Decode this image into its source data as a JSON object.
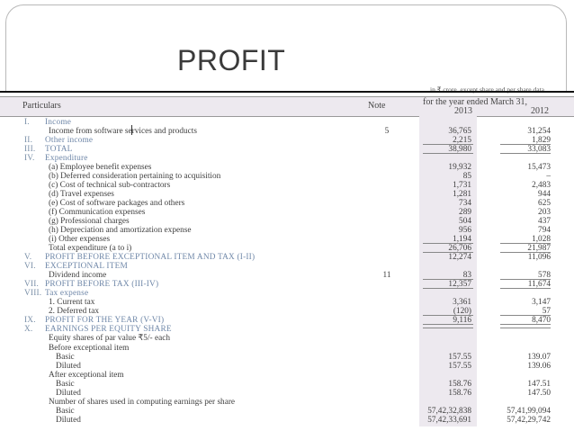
{
  "slide": {
    "title": "PROFIT"
  },
  "table": {
    "units_note": "in ₹ crore, except share and per share data",
    "headers": {
      "particulars": "Particulars",
      "note": "Note",
      "period": "for the year ended March 31,",
      "y2013": "2013",
      "y2012": "2012"
    },
    "rows": [
      {
        "roman": "I.",
        "label": "Income",
        "style": "blue",
        "note": "",
        "v13": "",
        "v12": ""
      },
      {
        "roman": "",
        "label": "Income from software services and products",
        "style": "",
        "note": "5",
        "v13": "36,765",
        "v12": "31,254"
      },
      {
        "roman": "II.",
        "label": "Other income",
        "style": "blue",
        "note": "",
        "v13": "2,215",
        "v12": "1,829"
      },
      {
        "roman": "III.",
        "label": "TOTAL",
        "style": "blue",
        "note": "",
        "v13": "38,980",
        "v12": "33,083"
      },
      {
        "roman": "IV.",
        "label": "Expenditure",
        "style": "blue",
        "note": "",
        "v13": "",
        "v12": ""
      },
      {
        "roman": "",
        "label": "(a) Employee benefit expenses",
        "style": "",
        "note": "",
        "v13": "19,932",
        "v12": "15,473"
      },
      {
        "roman": "",
        "label": "(b) Deferred consideration pertaining to acquisition",
        "style": "",
        "note": "",
        "v13": "85",
        "v12": "–"
      },
      {
        "roman": "",
        "label": "(c) Cost of technical sub-contractors",
        "style": "",
        "note": "",
        "v13": "1,731",
        "v12": "2,483"
      },
      {
        "roman": "",
        "label": "(d) Travel expenses",
        "style": "",
        "note": "",
        "v13": "1,281",
        "v12": "944"
      },
      {
        "roman": "",
        "label": "(e) Cost of software packages and others",
        "style": "",
        "note": "",
        "v13": "734",
        "v12": "625"
      },
      {
        "roman": "",
        "label": "(f) Communication expenses",
        "style": "",
        "note": "",
        "v13": "289",
        "v12": "203"
      },
      {
        "roman": "",
        "label": "(g) Professional charges",
        "style": "",
        "note": "",
        "v13": "504",
        "v12": "437"
      },
      {
        "roman": "",
        "label": "(h) Depreciation and amortization expense",
        "style": "",
        "note": "",
        "v13": "956",
        "v12": "794"
      },
      {
        "roman": "",
        "label": "(i) Other expenses",
        "style": "",
        "note": "",
        "v13": "1,194",
        "v12": "1,028"
      },
      {
        "roman": "",
        "label": "Total expenditure (a to i)",
        "style": "",
        "note": "",
        "v13": "26,706",
        "v12": "21,987"
      },
      {
        "roman": "V.",
        "label": "PROFIT BEFORE EXCEPTIONAL ITEM AND TAX (I-II)",
        "style": "blue",
        "note": "",
        "v13": "12,274",
        "v12": "11,096"
      },
      {
        "roman": "VI.",
        "label": "EXCEPTIONAL ITEM",
        "style": "blue",
        "note": "",
        "v13": "",
        "v12": ""
      },
      {
        "roman": "",
        "label": "Dividend income",
        "style": "",
        "note": "11",
        "v13": "83",
        "v12": "578"
      },
      {
        "roman": "VII.",
        "label": "PROFIT BEFORE TAX (III-IV)",
        "style": "blue",
        "note": "",
        "v13": "12,357",
        "v12": "11,674"
      },
      {
        "roman": "VIII.",
        "label": "Tax expense",
        "style": "blue",
        "note": "",
        "v13": "",
        "v12": ""
      },
      {
        "roman": "",
        "label": "1. Current tax",
        "style": "",
        "note": "",
        "v13": "3,361",
        "v12": "3,147"
      },
      {
        "roman": "",
        "label": "2. Deferred tax",
        "style": "",
        "note": "",
        "v13": "(120)",
        "v12": "57"
      },
      {
        "roman": "IX.",
        "label": "PROFIT FOR THE YEAR (V-VI)",
        "style": "blue",
        "note": "",
        "v13": "9,116",
        "v12": "8,470"
      },
      {
        "roman": "X.",
        "label": "EARNINGS PER EQUITY SHARE",
        "style": "blue",
        "note": "",
        "v13": "",
        "v12": ""
      },
      {
        "roman": "",
        "label": "Equity shares of par value ₹5/- each",
        "style": "",
        "note": "",
        "v13": "",
        "v12": ""
      },
      {
        "roman": "",
        "label": "Before exceptional item",
        "style": "",
        "note": "",
        "v13": "",
        "v12": ""
      },
      {
        "roman": "",
        "label": "Basic",
        "style": "i2",
        "note": "",
        "v13": "157.55",
        "v12": "139.07"
      },
      {
        "roman": "",
        "label": "Diluted",
        "style": "i2",
        "note": "",
        "v13": "157.55",
        "v12": "139.06"
      },
      {
        "roman": "",
        "label": "After exceptional item",
        "style": "",
        "note": "",
        "v13": "",
        "v12": ""
      },
      {
        "roman": "",
        "label": "Basic",
        "style": "i2",
        "note": "",
        "v13": "158.76",
        "v12": "147.51"
      },
      {
        "roman": "",
        "label": "Diluted",
        "style": "i2",
        "note": "",
        "v13": "158.76",
        "v12": "147.50"
      },
      {
        "roman": "",
        "label": "Number of shares used in computing earnings per share",
        "style": "",
        "note": "",
        "v13": "",
        "v12": ""
      },
      {
        "roman": "",
        "label": "Basic",
        "style": "i2",
        "note": "",
        "v13": "57,42,32,838",
        "v12": "57,41,99,094"
      },
      {
        "roman": "",
        "label": "Diluted",
        "style": "i2",
        "note": "",
        "v13": "57,42,33,691",
        "v12": "57,42,29,742"
      }
    ]
  }
}
